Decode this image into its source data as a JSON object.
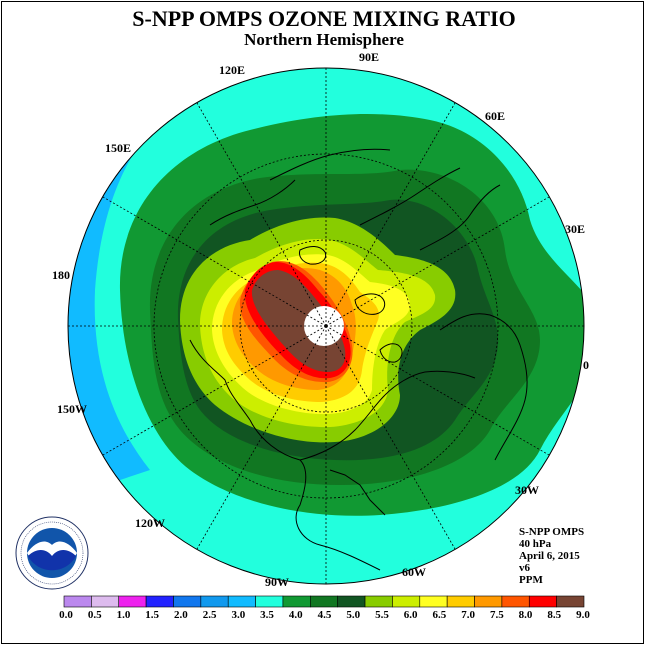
{
  "title": "S-NPP OMPS OZONE MIXING RATIO",
  "subtitle": "Northern Hemisphere",
  "longitude_labels": {
    "lon_120e": "120E",
    "lon_90e": "90E",
    "lon_60e": "60E",
    "lon_30e": "30E",
    "lon_0": "0",
    "lon_30w": "30W",
    "lon_60w": "60W",
    "lon_90w": "90W",
    "lon_120w": "120W",
    "lon_150w": "150W",
    "lon_180": "180",
    "lon_150e": "150E"
  },
  "info": {
    "instrument": "S-NPP OMPS",
    "level": "40 hPa",
    "date": "April 6, 2015",
    "version": "v6",
    "units": "PPM"
  },
  "logo": {
    "text": "NOAA"
  },
  "colorbar": {
    "labels": [
      "0.0",
      "0.5",
      "1.0",
      "1.5",
      "2.0",
      "2.5",
      "3.0",
      "3.5",
      "4.0",
      "4.5",
      "5.0",
      "5.5",
      "6.0",
      "6.5",
      "7.0",
      "7.5",
      "8.0",
      "8.5",
      "9.0"
    ],
    "colors": [
      "#bb88ee",
      "#ddbbee",
      "#ee22ee",
      "#2222ff",
      "#1177ee",
      "#1199ee",
      "#11bbff",
      "#22ffdd",
      "#119933",
      "#117722",
      "#115522",
      "#88cc00",
      "#ccee00",
      "#ffff22",
      "#ffcc00",
      "#ff9900",
      "#ff5500",
      "#ff0000",
      "#774433"
    ]
  }
}
